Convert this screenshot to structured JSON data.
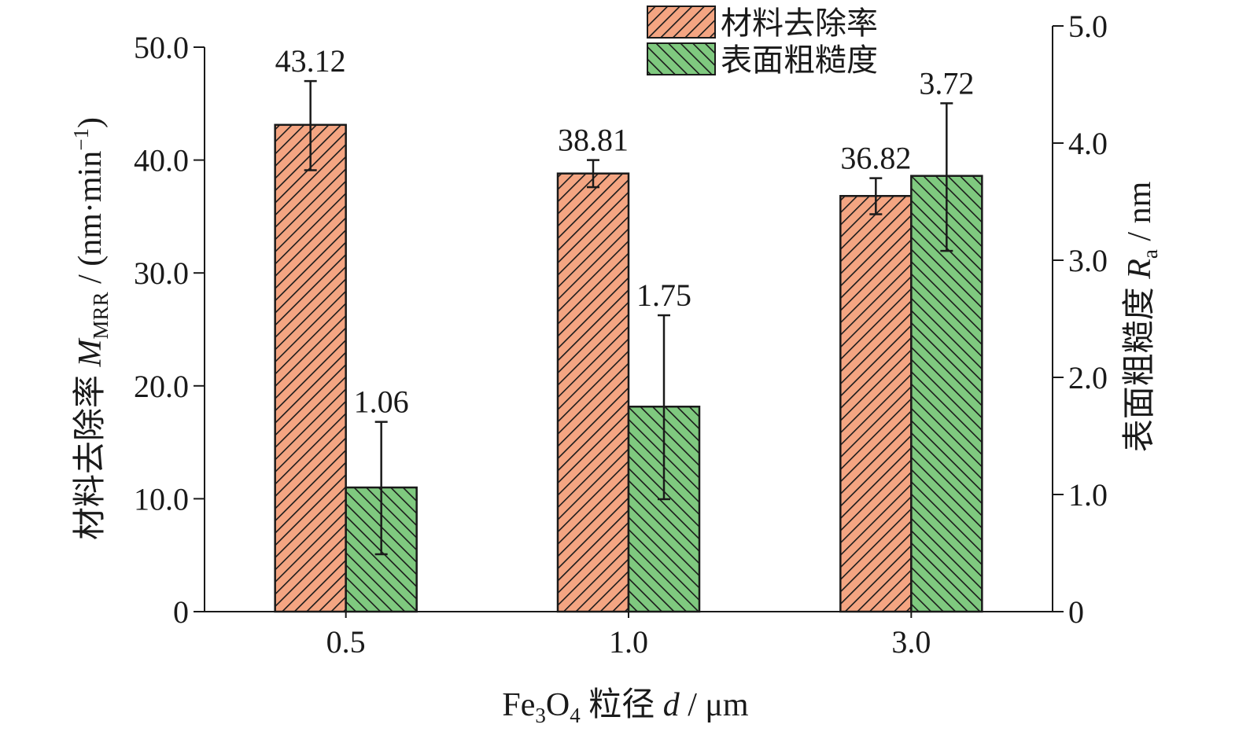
{
  "chart_data": {
    "type": "bar",
    "categories": [
      "0.5",
      "1.0",
      "3.0"
    ],
    "x_axis": {
      "label_prefix": "Fe",
      "label_sub1": "3",
      "label_mid": "O",
      "label_sub2": "4",
      "label_cn": " 粒径 ",
      "label_var": "d",
      "label_unit": " / μm"
    },
    "y_left": {
      "label_cn": "材料去除率 ",
      "label_var": "M",
      "label_sub": "MRR",
      "label_unit": " / (nm·min",
      "label_sup": "−1",
      "label_close": ")",
      "ylim": [
        0,
        50
      ],
      "ticks": [
        "0",
        "10.0",
        "20.0",
        "30.0",
        "40.0",
        "50.0"
      ],
      "tick_values": [
        0,
        10,
        20,
        30,
        40,
        50
      ]
    },
    "y_right": {
      "label_cn": "表面粗糙度 ",
      "label_var": "R",
      "label_sub": "a",
      "label_unit": " / nm",
      "ylim": [
        0,
        5
      ],
      "ticks": [
        "0",
        "1.0",
        "2.0",
        "3.0",
        "4.0",
        "5.0"
      ],
      "tick_values": [
        0,
        1,
        2,
        3,
        4,
        5
      ]
    },
    "series": [
      {
        "name": "材料去除率",
        "axis": "left",
        "values": [
          43.12,
          38.81,
          36.82
        ],
        "labels": [
          "43.12",
          "38.81",
          "36.82"
        ],
        "error_low": [
          39.1,
          37.6,
          35.2
        ],
        "error_high": [
          47.0,
          40.0,
          38.4
        ],
        "color": "#f4a582",
        "hatch": "forward-diagonal"
      },
      {
        "name": "表面粗糙度",
        "axis": "right",
        "values": [
          1.06,
          1.75,
          3.72
        ],
        "labels": [
          "1.06",
          "1.75",
          "3.72"
        ],
        "error_low": [
          0.49,
          0.96,
          3.08
        ],
        "error_high": [
          1.62,
          2.53,
          4.34
        ],
        "color": "#7fc97f",
        "hatch": "back-diagonal"
      }
    ],
    "legend": {
      "position": "top-center"
    },
    "grid": false
  }
}
